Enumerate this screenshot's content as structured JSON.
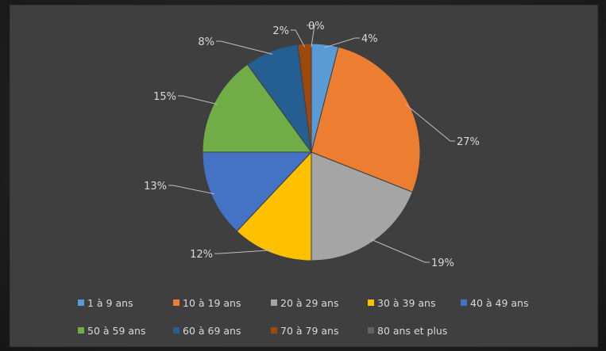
{
  "chart_data": {
    "type": "pie",
    "categories": [
      "1 à 9 ans",
      "10 à 19 ans",
      "20 à 29 ans",
      "30 à 39 ans",
      "40 à 49 ans",
      "50 à 59 ans",
      "60 à 69 ans",
      "70 à 79 ans",
      "80 ans et plus"
    ],
    "values": [
      4,
      27,
      19,
      12,
      13,
      15,
      8,
      2,
      0
    ],
    "value_labels": [
      "4%",
      "27%",
      "19%",
      "12%",
      "13%",
      "15%",
      "8%",
      "2%",
      "0%"
    ],
    "colors": [
      "#5b9bd5",
      "#ed7d31",
      "#a5a5a5",
      "#ffc000",
      "#4472c4",
      "#70ad47",
      "#255e91",
      "#9e480e",
      "#636363"
    ],
    "start_angle_deg": 0,
    "direction": "clockwise",
    "legend_position": "bottom"
  }
}
